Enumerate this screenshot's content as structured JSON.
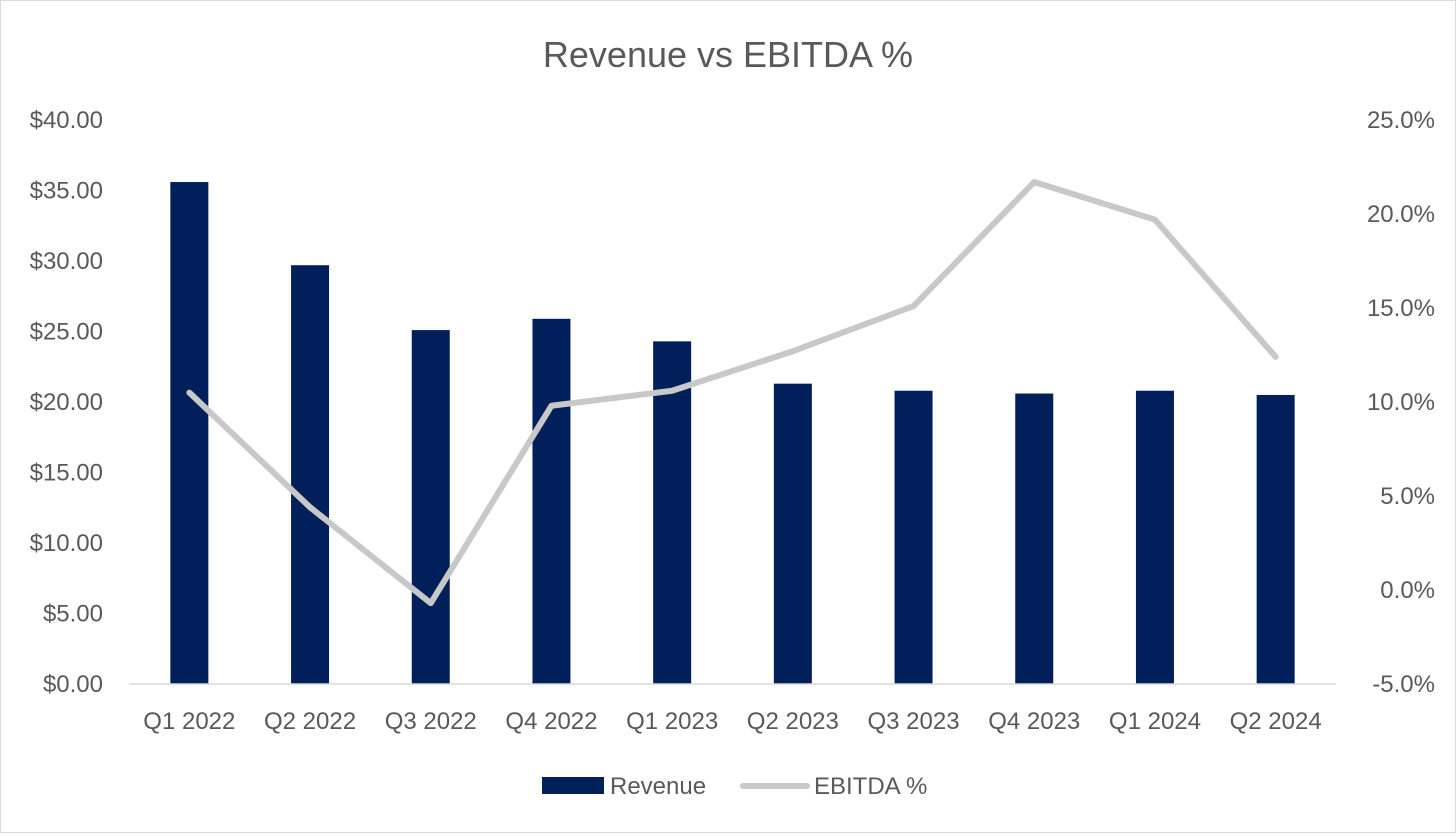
{
  "chart_data": {
    "type": "bar",
    "title": "Revenue vs EBITDA %",
    "categories": [
      "Q1 2022",
      "Q2 2022",
      "Q3 2022",
      "Q4 2022",
      "Q1 2023",
      "Q2 2023",
      "Q3 2023",
      "Q4 2023",
      "Q1 2024",
      "Q2 2024"
    ],
    "series": [
      {
        "name": "Revenue",
        "type": "bar",
        "axis": "left",
        "color": "#001f5b",
        "values": [
          35.6,
          29.7,
          25.1,
          25.9,
          24.3,
          21.3,
          20.8,
          20.6,
          20.8,
          20.5
        ]
      },
      {
        "name": "EBITDA %",
        "type": "line",
        "axis": "right",
        "color": "#c8c8c8",
        "values": [
          10.5,
          4.4,
          -0.7,
          9.8,
          10.6,
          12.7,
          15.1,
          21.7,
          19.7,
          12.4
        ]
      }
    ],
    "y_left": {
      "ylim": [
        0,
        40
      ],
      "ticks": [
        0,
        5,
        10,
        15,
        20,
        25,
        30,
        35,
        40
      ],
      "tick_labels": [
        "$0.00",
        "$5.00",
        "$10.00",
        "$15.00",
        "$20.00",
        "$25.00",
        "$30.00",
        "$35.00",
        "$40.00"
      ]
    },
    "y_right": {
      "ylim": [
        -5,
        25
      ],
      "ticks": [
        -5,
        0,
        5,
        10,
        15,
        20,
        25
      ],
      "tick_labels": [
        "-5.0%",
        "0.0%",
        "5.0%",
        "10.0%",
        "15.0%",
        "20.0%",
        "25.0%"
      ]
    },
    "grid": false,
    "legend": "bottom",
    "legend_entries": [
      "Revenue",
      "EBITDA %"
    ]
  }
}
